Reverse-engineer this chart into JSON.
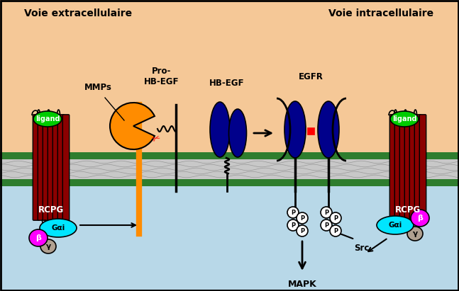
{
  "bg_top_color": "#F5C897",
  "bg_bottom_color": "#B8D8E8",
  "membrane_green_outer": "#2E7D2E",
  "membrane_green_inner": "#2E7D2E",
  "membrane_gray": "#C8C8C8",
  "rcpg_color": "#8B0000",
  "ligand_color": "#00CC00",
  "gai_color": "#00E5FF",
  "beta_color": "#FF00FF",
  "gamma_color": "#B0A090",
  "mmp_color": "#FF8C00",
  "hbegf_color": "#00008B",
  "egfr_color": "#00008B",
  "title_left": "Voie extracellulaire",
  "title_right": "Voie intracellulaire",
  "label_mmps": "MMPs",
  "label_pro": "Pro-\nHB-EGF",
  "label_hbegf": "HB-EGF",
  "label_egfr": "EGFR",
  "label_rcpg": "RCPG",
  "label_ligand": "ligand",
  "label_gai": "Gαi",
  "label_beta": "β",
  "label_gamma": "γ",
  "label_mapk": "MAPK",
  "label_src": "Src",
  "figsize": [
    6.47,
    4.11
  ],
  "dpi": 100
}
